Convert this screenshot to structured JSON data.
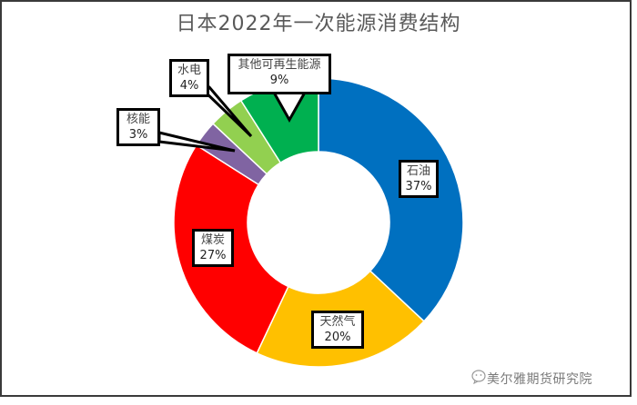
{
  "title": "日本2022年一次能源消费结构",
  "watermark": "美尔雅期货研究院",
  "chart_data": {
    "type": "pie",
    "subtype": "doughnut",
    "title": "日本2022年一次能源消费结构",
    "categories": [
      "石油",
      "天然气",
      "煤炭",
      "核能",
      "水电",
      "其他可再生能源"
    ],
    "values": [
      37,
      20,
      27,
      3,
      4,
      9
    ],
    "unit": "%",
    "colors": [
      "#0070C0",
      "#FFC000",
      "#FF0000",
      "#8064A2",
      "#92D050",
      "#00B050"
    ],
    "legend": "none (data callout labels)"
  },
  "labels": {
    "oil": {
      "name": "石油",
      "pct": "37%"
    },
    "gas": {
      "name": "天然气",
      "pct": "20%"
    },
    "coal": {
      "name": "煤炭",
      "pct": "27%"
    },
    "nuclear": {
      "name": "核能",
      "pct": "3%"
    },
    "hydro": {
      "name": "水电",
      "pct": "4%"
    },
    "renew": {
      "name": "其他可再生能源",
      "pct": "9%"
    }
  }
}
